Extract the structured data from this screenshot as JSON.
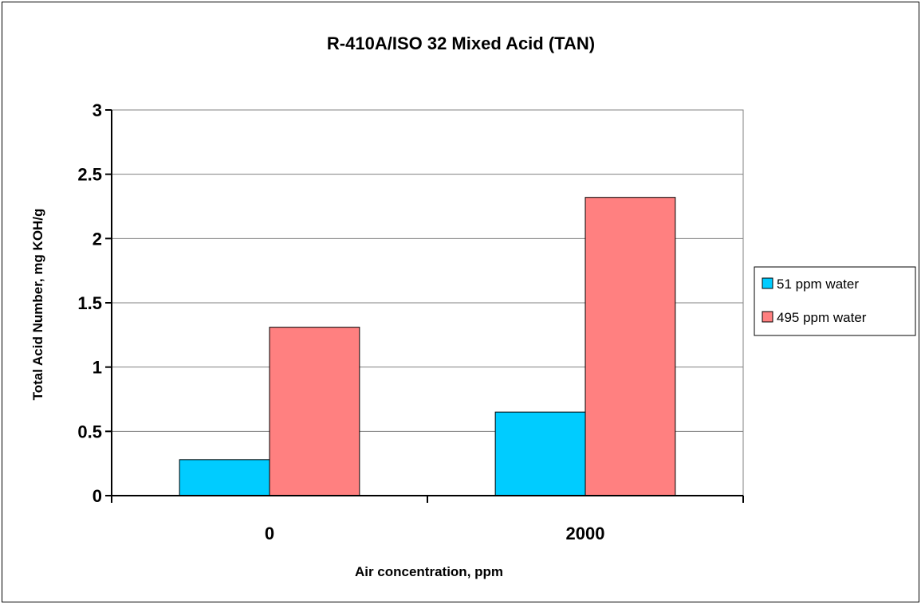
{
  "chart_data": {
    "type": "bar",
    "title": "R-410A/ISO 32 Mixed Acid (TAN)",
    "xlabel": "Air concentration, ppm",
    "ylabel": "Total Acid Number, mg KOH/g",
    "categories": [
      "0",
      "2000"
    ],
    "series": [
      {
        "name": "51 ppm water",
        "values": [
          0.28,
          0.65
        ],
        "color": "#00CCFF"
      },
      {
        "name": "495 ppm water",
        "values": [
          1.31,
          2.32
        ],
        "color": "#FF8080"
      }
    ],
    "ylim": [
      0,
      3
    ],
    "yticks": [
      0,
      0.5,
      1,
      1.5,
      2,
      2.5,
      3
    ],
    "ytick_labels": [
      "0",
      "0.5",
      "1",
      "1.5",
      "2",
      "2.5",
      "3"
    ],
    "grid": true,
    "legend_position": "right"
  }
}
